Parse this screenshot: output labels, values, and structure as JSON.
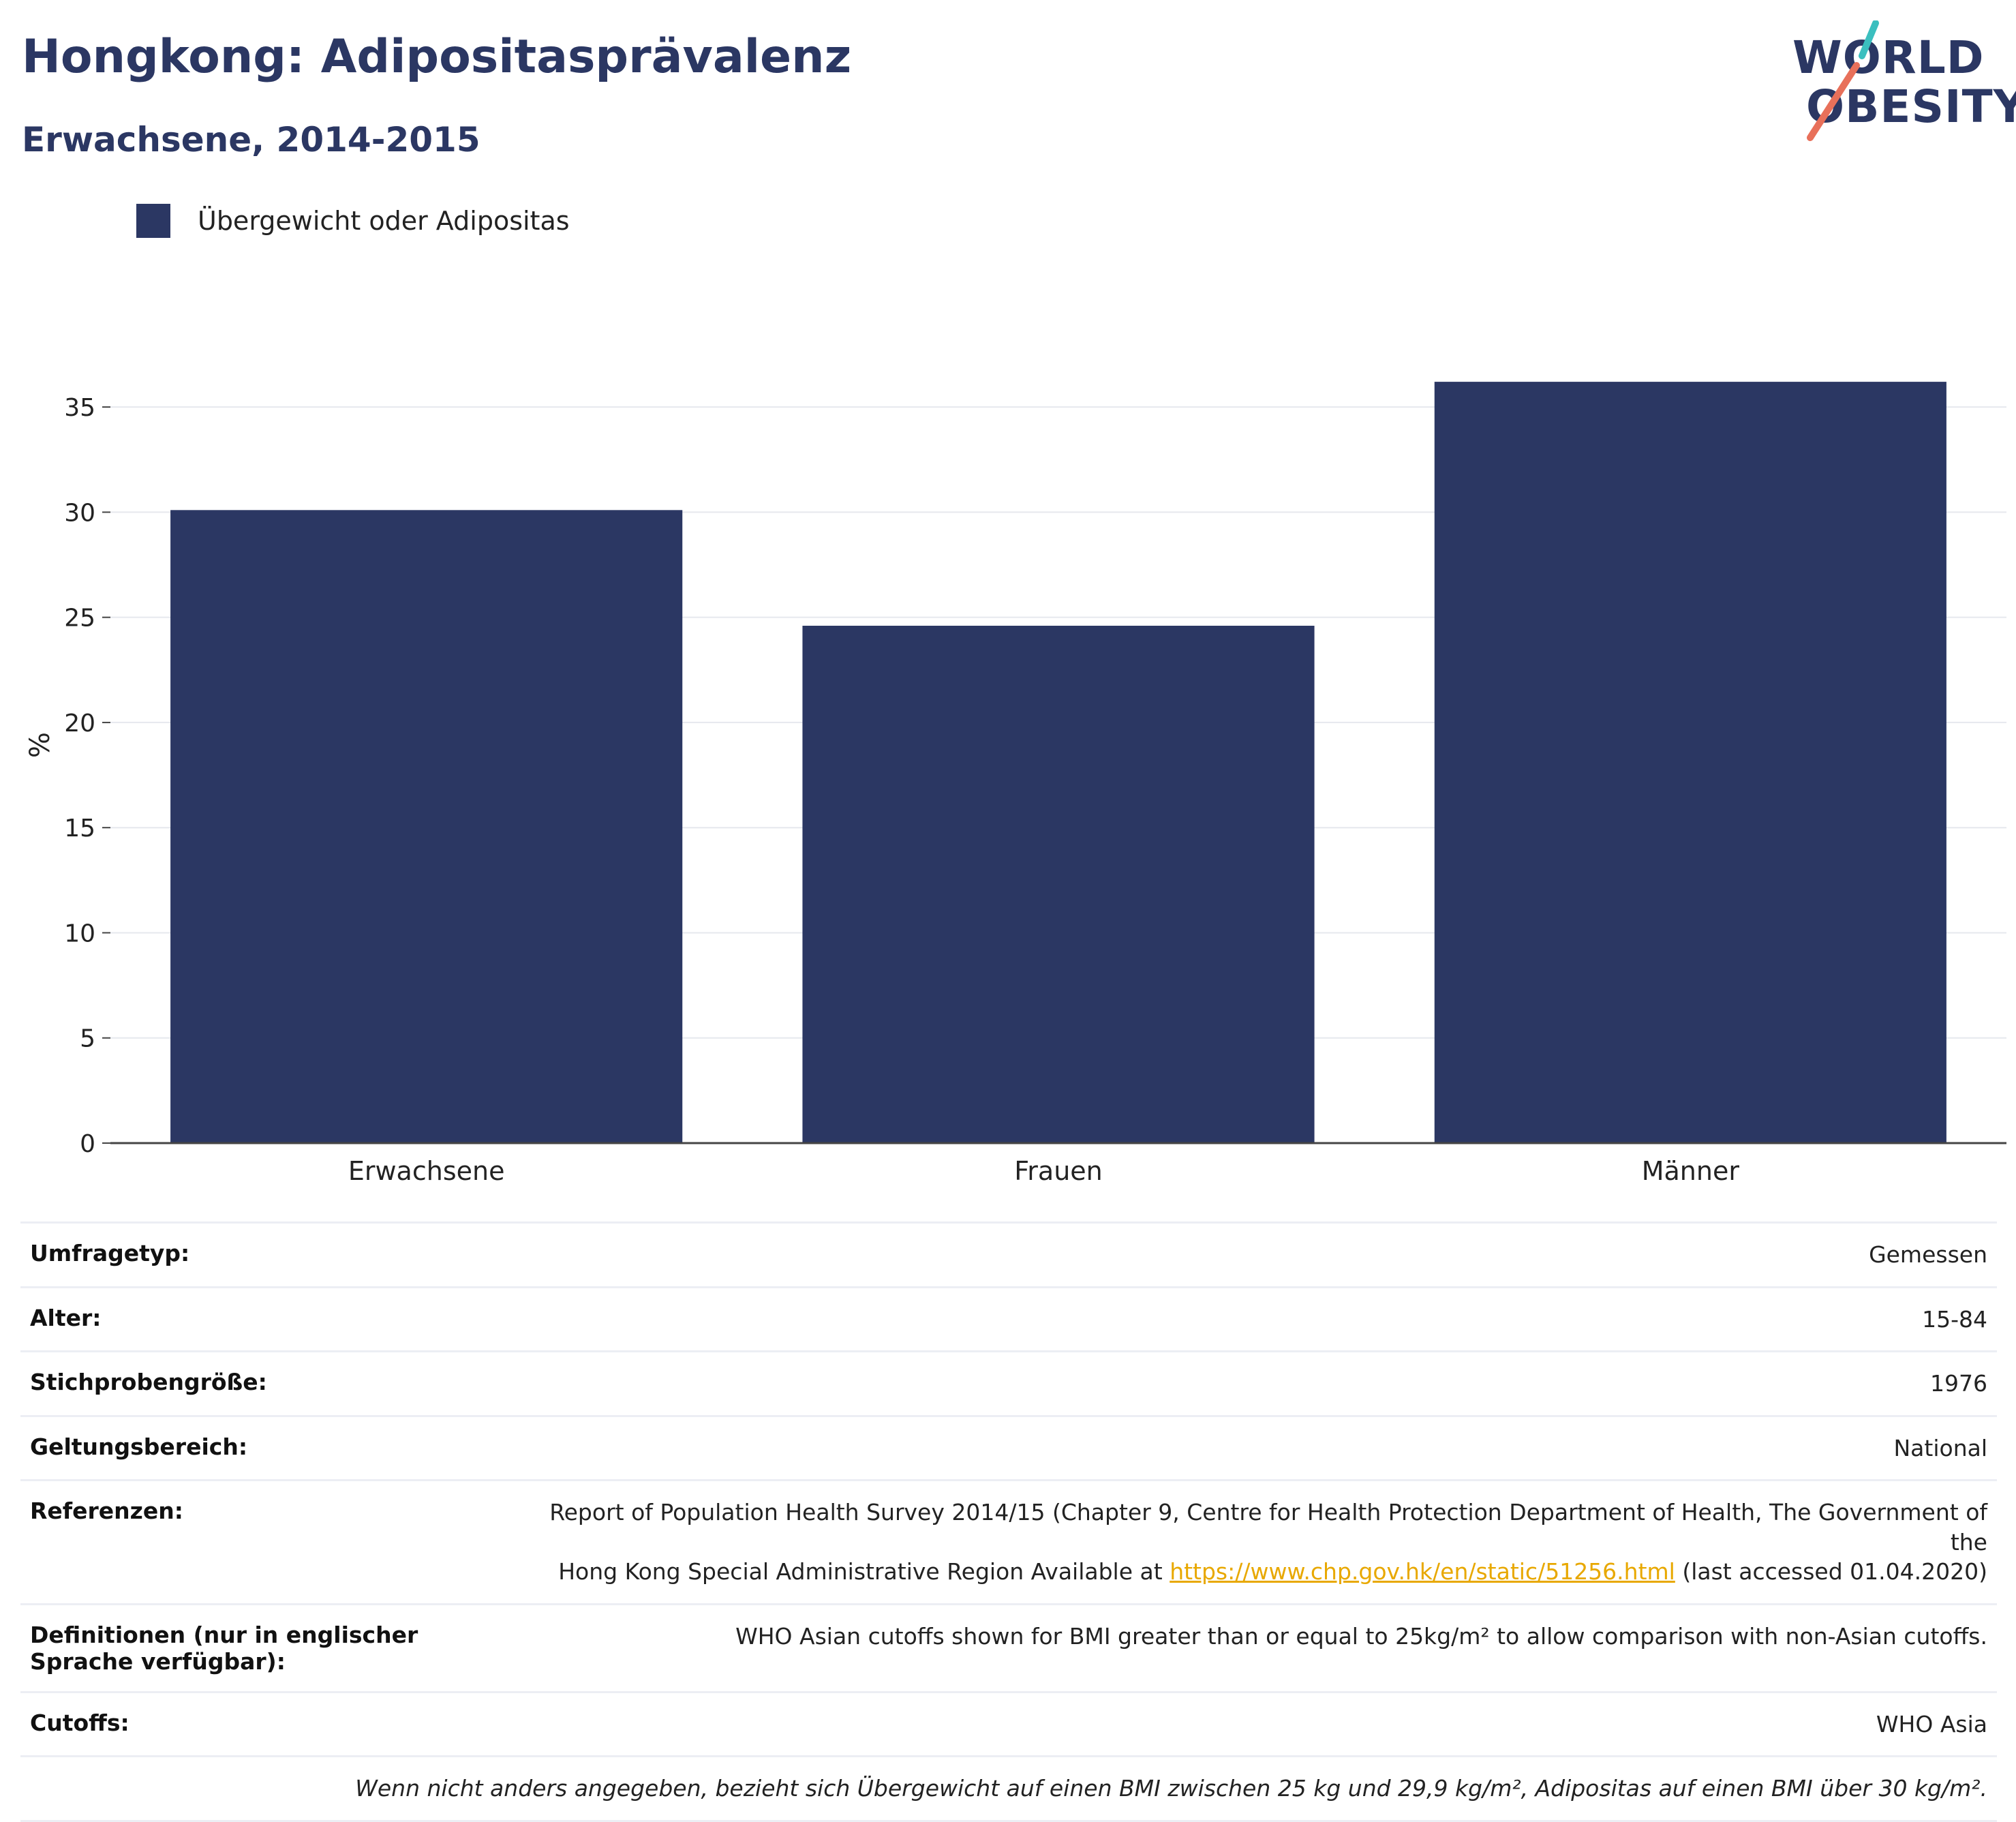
{
  "header": {
    "title": "Hongkong: Adipositasprävalenz",
    "subtitle": "Erwachsene, 2014-2015"
  },
  "logo": {
    "line1": "WORLD",
    "line2": "OBESITY",
    "colors": {
      "text": "#2b3763",
      "teal": "#3bbfbf",
      "coral": "#e8705a"
    }
  },
  "legend": {
    "items": [
      {
        "label": "Übergewicht oder Adipositas",
        "color": "#2b3763"
      }
    ],
    "placement": "top-left"
  },
  "chart_data": {
    "type": "bar",
    "categories": [
      "Erwachsene",
      "Frauen",
      "Männer"
    ],
    "series": [
      {
        "name": "Übergewicht oder Adipositas",
        "values": [
          30.1,
          24.6,
          36.2
        ],
        "color": "#2b3763"
      }
    ],
    "xlabel": "",
    "ylabel": "%",
    "ylim": [
      0,
      37.5
    ],
    "yticks": [
      0,
      5,
      10,
      15,
      20,
      25,
      30,
      35
    ],
    "grid": true
  },
  "info": {
    "rows": [
      {
        "key": "Umfragetyp:",
        "value": "Gemessen"
      },
      {
        "key": "Alter:",
        "value": "15-84"
      },
      {
        "key": "Stichprobengröße:",
        "value": "1976"
      },
      {
        "key": "Geltungsbereich:",
        "value": "National"
      }
    ],
    "references": {
      "key": "Referenzen:",
      "text_line1": "Report of Population Health Survey 2014/15 (Chapter 9, Centre for Health Protection Department of Health, The Government of the",
      "text_line2_before": "Hong Kong Special Administrative Region Available at",
      "link": "https://www.chp.gov.hk/en/static/51256.html",
      "text_line2_after": "(last accessed 01.04.2020)"
    },
    "definitions": {
      "key": "Definitionen (nur in englischer Sprache verfügbar):",
      "value": "WHO Asian cutoffs shown for BMI greater than or equal to 25kg/m² to allow comparison with non-Asian cutoffs."
    },
    "cutoffs": {
      "key": "Cutoffs:",
      "value": "WHO Asia"
    },
    "footnote": "Wenn nicht anders angegeben, bezieht sich Übergewicht auf einen BMI zwischen 25 kg und 29,9 kg/m², Adipositas auf einen BMI über 30 kg/m²."
  }
}
